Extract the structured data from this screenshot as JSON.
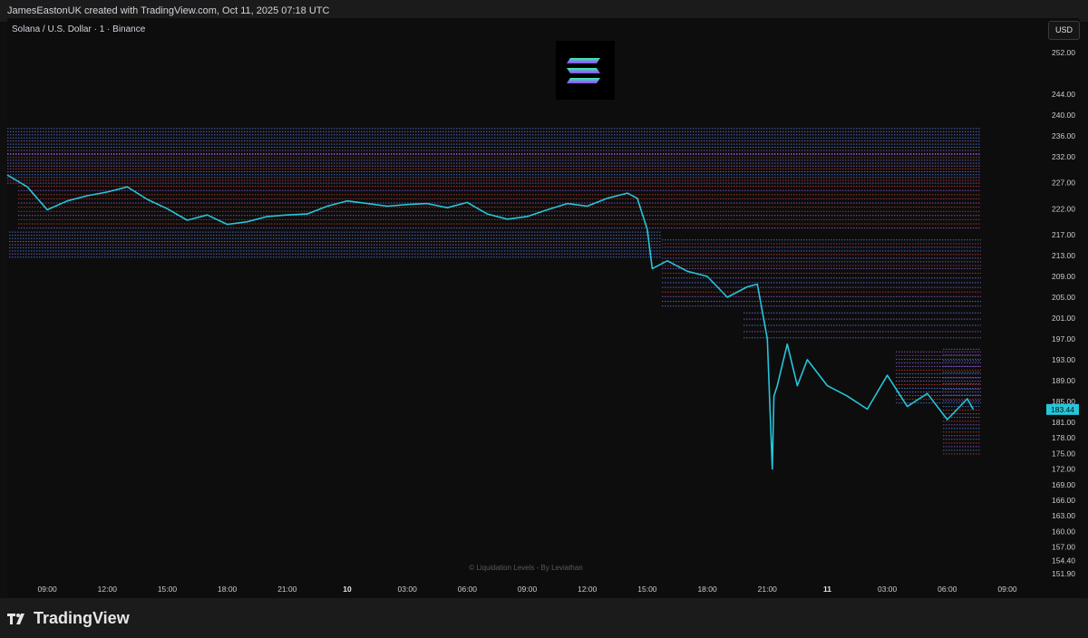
{
  "header": {
    "text": "JamesEastonUK created with TradingView.com, Oct 11, 2025 07:18 UTC"
  },
  "symbol": {
    "title": "Solana / U.S. Dollar · 1 · Binance"
  },
  "currency_button": "USD",
  "watermark": "© Liquidation Levels - By Leviathan",
  "brand": {
    "name": "TradingView"
  },
  "colors": {
    "line": "#26c6da",
    "price_tag": "#26c6da",
    "liq_blue": "#4d7bd6",
    "liq_purple": "#8a5bd6",
    "liq_red": "#c0392b",
    "logo_green": "#3cf0b2",
    "logo_purple": "#9945ff"
  },
  "chart_data": {
    "type": "line",
    "title": "",
    "xlabel": "",
    "ylabel": "",
    "x_ticks": [
      "09:00",
      "12:00",
      "15:00",
      "18:00",
      "21:00",
      "10",
      "03:00",
      "06:00",
      "09:00",
      "12:00",
      "15:00",
      "18:00",
      "21:00",
      "11",
      "03:00",
      "06:00",
      "09:00"
    ],
    "bold_ticks": [
      "10",
      "11"
    ],
    "y_ticks": [
      252.0,
      244.0,
      240.0,
      236.0,
      232.0,
      227.0,
      222.0,
      217.0,
      213.0,
      209.0,
      205.0,
      201.0,
      197.0,
      193.0,
      189.0,
      185.0,
      181.0,
      178.0,
      175.0,
      172.0,
      169.0,
      166.0,
      163.0,
      160.0,
      157.0,
      154.4,
      151.9
    ],
    "last_price": "183.44",
    "series": [
      {
        "values": [
          [
            "Oct 9 07:00",
            228.5
          ],
          [
            "Oct 9 08:00",
            226.2
          ],
          [
            "Oct 9 09:00",
            221.8
          ],
          [
            "Oct 9 10:00",
            223.5
          ],
          [
            "Oct 9 11:00",
            224.5
          ],
          [
            "Oct 9 12:00",
            225.2
          ],
          [
            "Oct 9 13:00",
            226.2
          ],
          [
            "Oct 9 14:00",
            223.8
          ],
          [
            "Oct 9 15:00",
            222.0
          ],
          [
            "Oct 9 16:00",
            219.8
          ],
          [
            "Oct 9 17:00",
            220.8
          ],
          [
            "Oct 9 18:00",
            219.0
          ],
          [
            "Oct 9 19:00",
            219.5
          ],
          [
            "Oct 9 20:00",
            220.5
          ],
          [
            "Oct 9 21:00",
            220.8
          ],
          [
            "Oct 9 22:00",
            221.0
          ],
          [
            "Oct 9 23:00",
            222.5
          ],
          [
            "Oct 10 00:00",
            223.5
          ],
          [
            "Oct 10 01:00",
            223.0
          ],
          [
            "Oct 10 02:00",
            222.5
          ],
          [
            "Oct 10 03:00",
            222.8
          ],
          [
            "Oct 10 04:00",
            223.0
          ],
          [
            "Oct 10 05:00",
            222.2
          ],
          [
            "Oct 10 06:00",
            223.2
          ],
          [
            "Oct 10 07:00",
            221.0
          ],
          [
            "Oct 10 08:00",
            220.0
          ],
          [
            "Oct 10 09:00",
            220.5
          ],
          [
            "Oct 10 10:00",
            221.8
          ],
          [
            "Oct 10 11:00",
            223.0
          ],
          [
            "Oct 10 12:00",
            222.5
          ],
          [
            "Oct 10 13:00",
            224.0
          ],
          [
            "Oct 10 14:00",
            225.0
          ],
          [
            "Oct 10 14:30",
            224.0
          ],
          [
            "Oct 10 15:00",
            218.0
          ],
          [
            "Oct 10 15:15",
            210.5
          ],
          [
            "Oct 10 16:00",
            212.0
          ],
          [
            "Oct 10 17:00",
            210.0
          ],
          [
            "Oct 10 18:00",
            209.0
          ],
          [
            "Oct 10 19:00",
            205.0
          ],
          [
            "Oct 10 20:00",
            207.0
          ],
          [
            "Oct 10 20:30",
            207.5
          ],
          [
            "Oct 10 21:00",
            197.0
          ],
          [
            "Oct 10 21:15",
            172.0
          ],
          [
            "Oct 10 21:20",
            186.0
          ],
          [
            "Oct 10 21:30",
            188.0
          ],
          [
            "Oct 10 22:00",
            196.0
          ],
          [
            "Oct 10 22:30",
            188.0
          ],
          [
            "Oct 10 23:00",
            193.0
          ],
          [
            "Oct 11 00:00",
            188.0
          ],
          [
            "Oct 11 01:00",
            186.0
          ],
          [
            "Oct 11 02:00",
            183.5
          ],
          [
            "Oct 11 03:00",
            190.0
          ],
          [
            "Oct 11 04:00",
            184.0
          ],
          [
            "Oct 11 05:00",
            186.5
          ],
          [
            "Oct 11 06:00",
            181.5
          ],
          [
            "Oct 11 07:00",
            185.5
          ],
          [
            "Oct 11 07:18",
            183.44
          ]
        ]
      }
    ]
  }
}
